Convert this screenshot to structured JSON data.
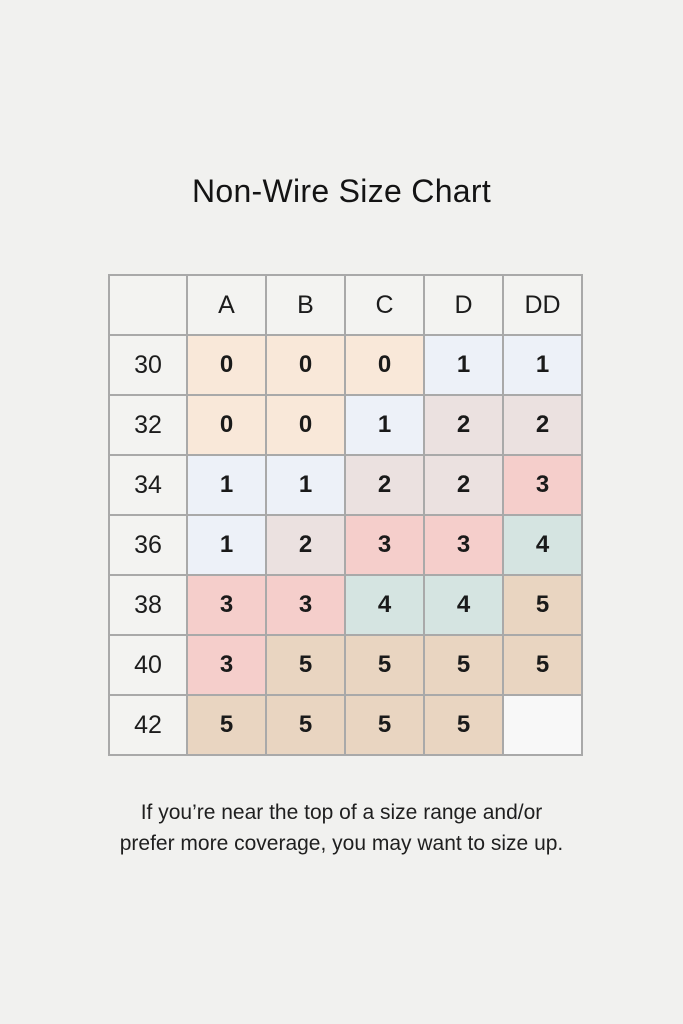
{
  "page": {
    "background_color": "#f1f1ef",
    "border_color": "#a9a9a9",
    "header_cell_color": "#f3f3f1",
    "title": "Non-Wire Size Chart",
    "footnote": {
      "lines": [
        "If you’re near the top of a size range and/or",
        "prefer more coverage, you may want to size up."
      ]
    }
  },
  "chart_data": {
    "type": "table",
    "title": "Non-Wire Size Chart",
    "column_headers": [
      "A",
      "B",
      "C",
      "D",
      "DD"
    ],
    "row_headers": [
      "30",
      "32",
      "34",
      "36",
      "38",
      "40",
      "42"
    ],
    "rows": [
      {
        "band": "30",
        "values": [
          "0",
          "0",
          "0",
          "1",
          "1"
        ]
      },
      {
        "band": "32",
        "values": [
          "0",
          "0",
          "1",
          "2",
          "2"
        ]
      },
      {
        "band": "34",
        "values": [
          "1",
          "1",
          "2",
          "2",
          "3"
        ]
      },
      {
        "band": "36",
        "values": [
          "1",
          "2",
          "3",
          "3",
          "4"
        ]
      },
      {
        "band": "38",
        "values": [
          "3",
          "3",
          "4",
          "4",
          "5"
        ]
      },
      {
        "band": "40",
        "values": [
          "3",
          "5",
          "5",
          "5",
          "5"
        ]
      },
      {
        "band": "42",
        "values": [
          "5",
          "5",
          "5",
          "5",
          ""
        ]
      }
    ],
    "value_colors": {
      "0": "#f9e8d9",
      "1": "#edf1f8",
      "2": "#ebe1e0",
      "3": "#f5cecb",
      "4": "#d5e4e1",
      "5": "#e9d5c1",
      "empty": "#f8f8f8"
    }
  }
}
